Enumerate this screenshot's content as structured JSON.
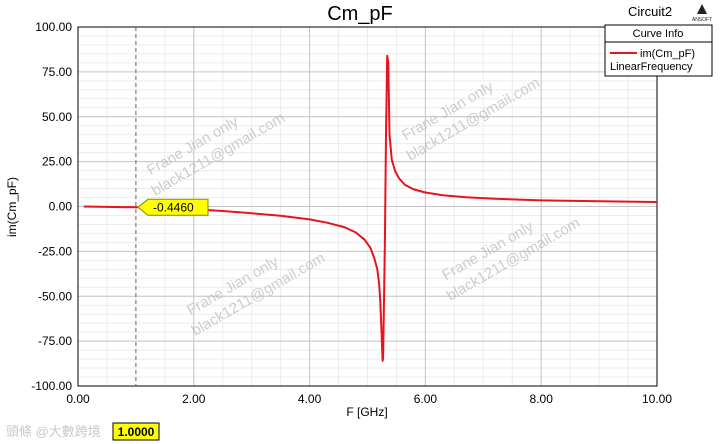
{
  "app": {
    "circuit_name": "Circuit2",
    "brand": "ANSOFT"
  },
  "chart_data": {
    "type": "line",
    "title": "Cm_pF",
    "xlabel": "F [GHz]",
    "ylabel": "im(Cm_pF)",
    "xlim": [
      0,
      10
    ],
    "ylim": [
      -100,
      100
    ],
    "x_ticks": [
      "0.00",
      "2.00",
      "4.00",
      "6.00",
      "8.00",
      "10.00"
    ],
    "y_ticks": [
      "100.00",
      "75.00",
      "50.00",
      "25.00",
      "0.00",
      "-25.00",
      "-50.00",
      "-75.00",
      "-100.00"
    ],
    "grid": true,
    "legend": {
      "header": "Curve Info",
      "placement": "top-right",
      "entries": [
        {
          "name": "im(Cm_pF)",
          "sub": "LinearFrequency",
          "color": "#e8131b"
        }
      ]
    },
    "series": [
      {
        "name": "im(Cm_pF)",
        "color": "#e8131b",
        "x": [
          0.1,
          0.5,
          1.0,
          1.5,
          2.0,
          2.5,
          3.0,
          3.5,
          4.0,
          4.3,
          4.6,
          4.8,
          4.95,
          5.05,
          5.12,
          5.17,
          5.2,
          5.22,
          5.24,
          5.26,
          5.27,
          5.3,
          5.32,
          5.34,
          5.36,
          5.38,
          5.42,
          5.48,
          5.55,
          5.65,
          5.8,
          6.0,
          6.3,
          6.7,
          7.2,
          8.0,
          9.0,
          10.0
        ],
        "y": [
          0.0,
          -0.2,
          -0.45,
          -0.8,
          -1.5,
          -2.5,
          -3.8,
          -5.2,
          -7.2,
          -9.0,
          -11.5,
          -14.5,
          -18.5,
          -23,
          -29,
          -35,
          -43,
          -52,
          -68,
          -86,
          -84,
          -20,
          40,
          84,
          80,
          40,
          26,
          19.5,
          15.5,
          12,
          9.5,
          7.8,
          6.3,
          5.2,
          4.3,
          3.4,
          2.9,
          2.5
        ]
      }
    ],
    "markers": {
      "vertical_x": 1.0,
      "vertical_label": "1.0000",
      "point_value": -0.446,
      "point_label": "-0.4460"
    }
  },
  "watermarks": [
    {
      "line1": "Frane Jian only",
      "line2": "black1211@gmail.com"
    },
    {
      "line1": "Frane Jian only",
      "line2": "black1211@gmail.com"
    },
    {
      "line1": "Frane Jian only",
      "line2": "black1211@gmail.com"
    },
    {
      "line1": "Frane Jian only",
      "line2": "black1211@gmail.com"
    }
  ],
  "footer_watermark": "頭條 @大數跨境"
}
